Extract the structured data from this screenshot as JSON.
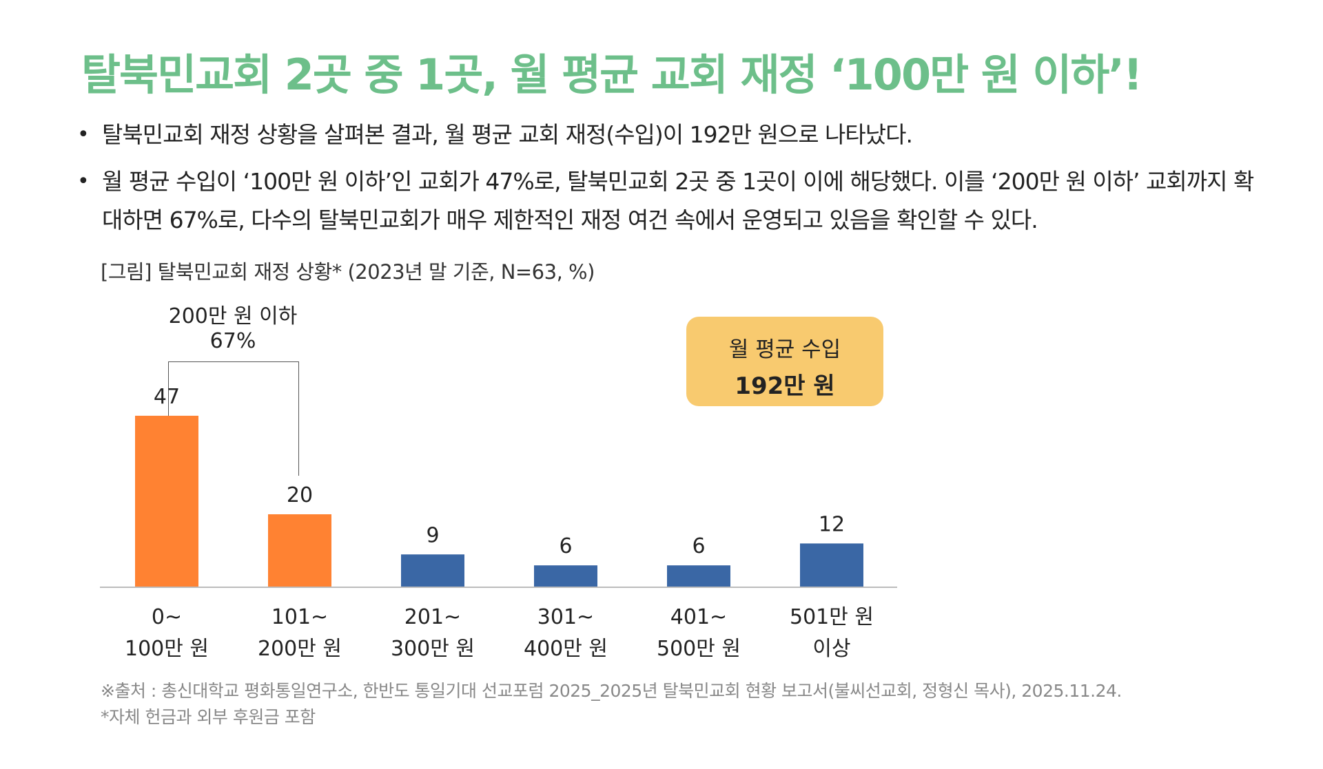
{
  "title": "탈북민교회 2곳 중 1곳, 월 평균 교회 재정 ‘100만 원 이하’!",
  "bullets": [
    "탈북민교회 재정 상황을 살펴본 결과, 월 평균 교회 재정(수입)이 192만 원으로 나타났다.",
    "월 평균 수입이 ‘100만 원 이하’인 교회가 47%로, 탈북민교회 2곳 중 1곳이 이에 해당했다. 이를 ‘200만 원 이하’ 교회까지 확대하면 67%로, 다수의 탈북민교회가 매우 제한적인 재정 여건 속에서 운영되고 있음을 확인할 수 있다."
  ],
  "figure_caption": "[그림] 탈북민교회 재정 상황* (2023년 말 기준, N=63, %)",
  "bracket": {
    "line1": "200만 원 이하",
    "line2": "67%"
  },
  "callout": {
    "line1": "월 평균 수입",
    "line2": "192만 원"
  },
  "colors": {
    "title": "#6dbf8a",
    "highlight": "#ff8232",
    "base": "#3a67a5",
    "callout": "#f8ca6f"
  },
  "chart_data": {
    "type": "bar",
    "categories": [
      [
        "0~",
        "100만 원"
      ],
      [
        "101~",
        "200만 원"
      ],
      [
        "201~",
        "300만 원"
      ],
      [
        "301~",
        "400만 원"
      ],
      [
        "401~",
        "500만 원"
      ],
      [
        "501만 원",
        "이상"
      ]
    ],
    "values": [
      47,
      20,
      9,
      6,
      6,
      12
    ],
    "highlighted": [
      true,
      true,
      false,
      false,
      false,
      false
    ],
    "ylim": [
      0,
      50
    ],
    "grid": false
  },
  "source": [
    "※출처 : 총신대학교 평화통일연구소, 한반도 통일기대 선교포럼 2025_2025년 탈북민교회 현황 보고서(불씨선교회, 정형신 목사), 2025.11.24.",
    "*자체 헌금과 외부 후원금 포함"
  ]
}
